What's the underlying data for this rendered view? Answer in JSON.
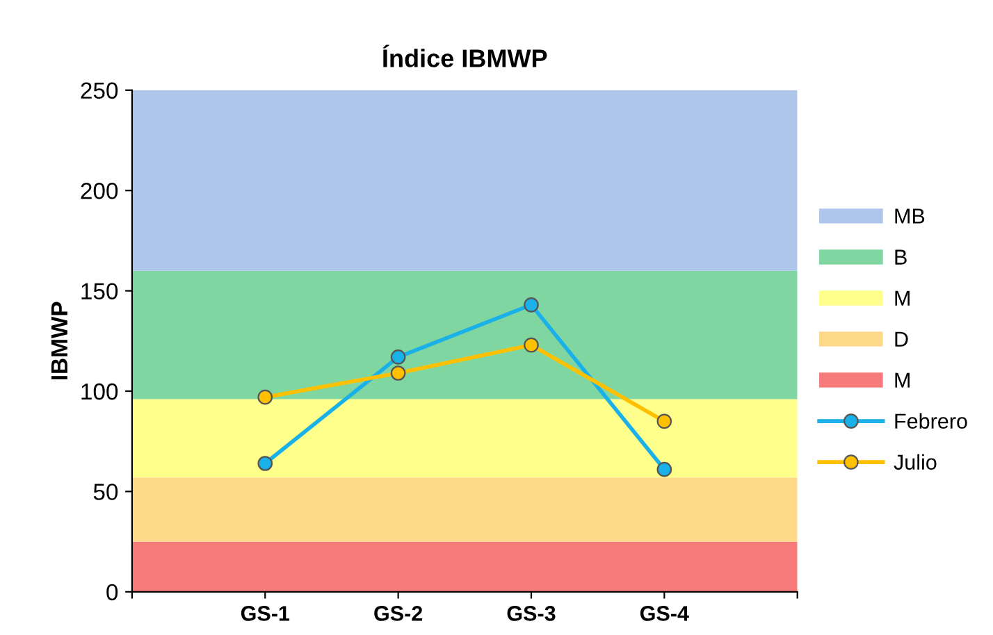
{
  "chart_data": {
    "type": "line",
    "title": "Índice IBMWP",
    "ylabel": "IBMWP",
    "categories": [
      null,
      "GS-1",
      "GS-2",
      "GS-3",
      "GS-4",
      null
    ],
    "stacked": true,
    "series": [
      {
        "name": "M",
        "type": "area",
        "color": "#f77b7b",
        "values": [
          25,
          25,
          25,
          25,
          25,
          25
        ]
      },
      {
        "name": "D",
        "type": "area",
        "color": "#ffd98a",
        "values": [
          32,
          32,
          32,
          32,
          32,
          32
        ]
      },
      {
        "name": "M",
        "type": "area",
        "color": "#ffff8c",
        "values": [
          39,
          39,
          39,
          39,
          39,
          39
        ]
      },
      {
        "name": "B",
        "type": "area",
        "color": "#80d6a0",
        "values": [
          64,
          64,
          64,
          64,
          64,
          64
        ]
      },
      {
        "name": "MB",
        "type": "area",
        "color": "#aec6ea",
        "values": [
          90,
          90,
          90,
          90,
          90,
          90
        ]
      },
      {
        "name": "Febrero",
        "color": "#1ab0e8",
        "marker": "circle",
        "values": [
          null,
          64,
          117,
          143,
          61,
          null
        ]
      },
      {
        "name": "Julio",
        "color": "#ffc000",
        "marker": "circle",
        "values": [
          null,
          97,
          109,
          123,
          85,
          null
        ]
      }
    ],
    "ylim": [
      0,
      250
    ],
    "yticks": [
      0,
      50,
      100,
      150,
      200,
      250
    ],
    "legend": "right",
    "grid": false
  }
}
